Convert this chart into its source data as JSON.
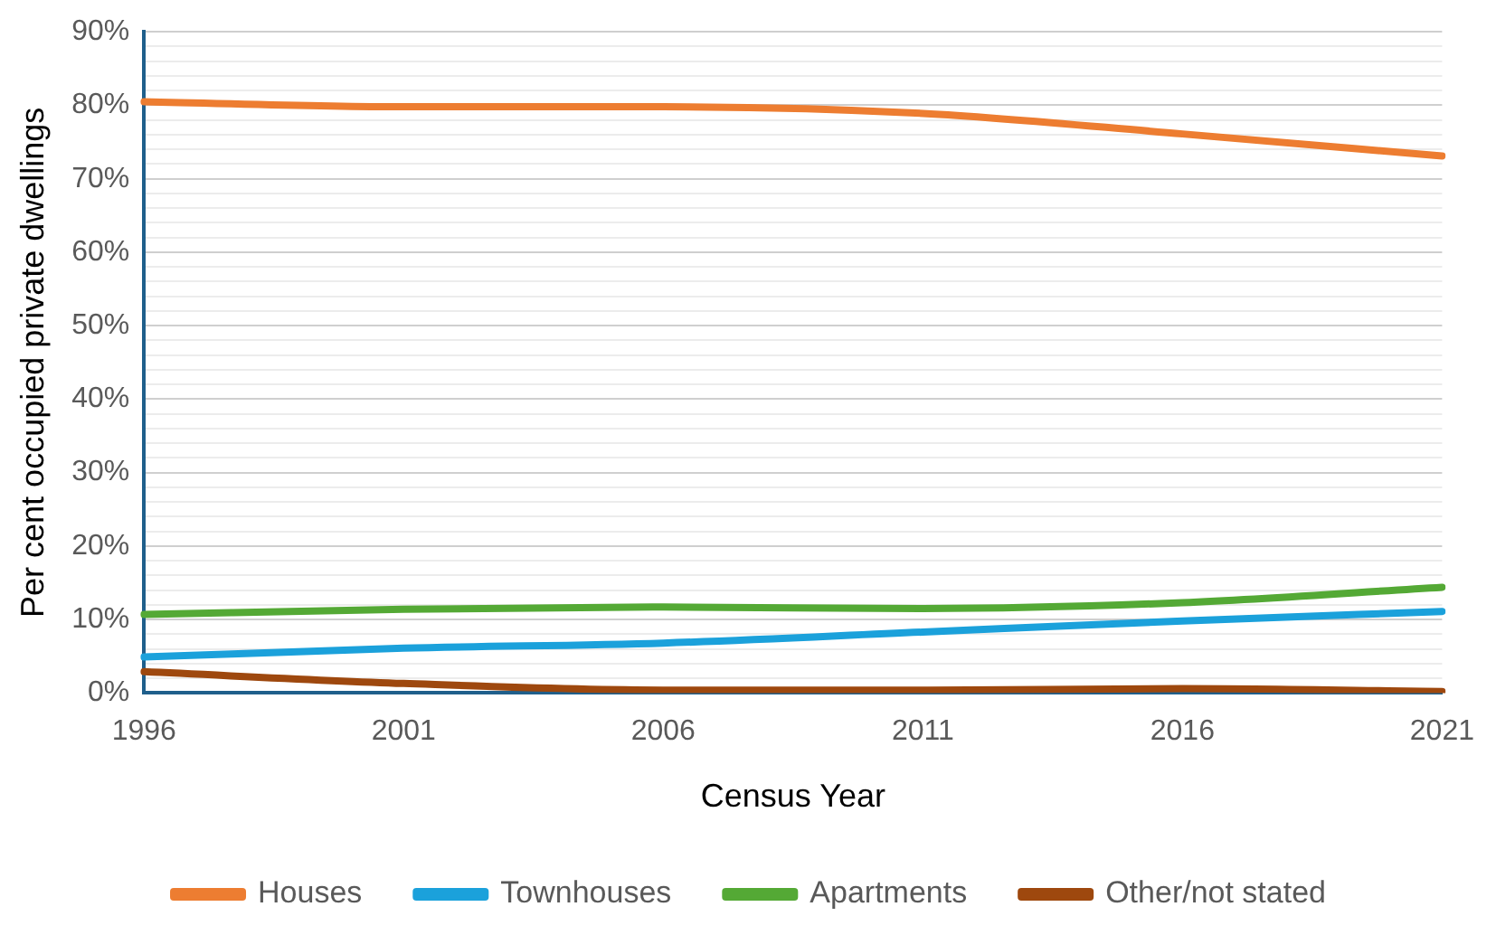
{
  "chart_data": {
    "type": "line",
    "xlabel": "Census Year",
    "ylabel": "Per cent occupied private dwellings",
    "categories": [
      "1996",
      "2001",
      "2006",
      "2011",
      "2016",
      "2021"
    ],
    "series": [
      {
        "name": "Houses",
        "color": "#ed7d31",
        "values": [
          80.5,
          79.8,
          79.8,
          78.9,
          76.1,
          73.1
        ]
      },
      {
        "name": "Townhouses",
        "color": "#1ba1db",
        "values": [
          4.9,
          6.1,
          6.8,
          8.3,
          9.8,
          11.1
        ]
      },
      {
        "name": "Apartments",
        "color": "#54a935",
        "values": [
          10.7,
          11.4,
          11.7,
          11.5,
          12.3,
          14.4
        ]
      },
      {
        "name": "Other/not stated",
        "color": "#9e480e",
        "values": [
          2.9,
          1.3,
          0.4,
          0.4,
          0.6,
          0.2
        ]
      }
    ],
    "ylim": [
      0,
      90
    ],
    "yticks": [
      {
        "value": 0,
        "label": "0%"
      },
      {
        "value": 2,
        "label": null
      },
      {
        "value": 4,
        "label": null
      },
      {
        "value": 6,
        "label": null
      },
      {
        "value": 8,
        "label": null
      },
      {
        "value": 10,
        "label": "10%"
      },
      {
        "value": 12,
        "label": null
      },
      {
        "value": 14,
        "label": null
      },
      {
        "value": 16,
        "label": null
      },
      {
        "value": 18,
        "label": null
      },
      {
        "value": 20,
        "label": "20%"
      },
      {
        "value": 22,
        "label": null
      },
      {
        "value": 24,
        "label": null
      },
      {
        "value": 26,
        "label": null
      },
      {
        "value": 28,
        "label": null
      },
      {
        "value": 30,
        "label": "30%"
      },
      {
        "value": 32,
        "label": null
      },
      {
        "value": 34,
        "label": null
      },
      {
        "value": 36,
        "label": null
      },
      {
        "value": 38,
        "label": null
      },
      {
        "value": 40,
        "label": "40%"
      },
      {
        "value": 42,
        "label": null
      },
      {
        "value": 44,
        "label": null
      },
      {
        "value": 46,
        "label": null
      },
      {
        "value": 48,
        "label": null
      },
      {
        "value": 50,
        "label": "50%"
      },
      {
        "value": 52,
        "label": null
      },
      {
        "value": 54,
        "label": null
      },
      {
        "value": 56,
        "label": null
      },
      {
        "value": 58,
        "label": null
      },
      {
        "value": 60,
        "label": "60%"
      },
      {
        "value": 62,
        "label": null
      },
      {
        "value": 64,
        "label": null
      },
      {
        "value": 66,
        "label": null
      },
      {
        "value": 68,
        "label": null
      },
      {
        "value": 70,
        "label": "70%"
      },
      {
        "value": 72,
        "label": null
      },
      {
        "value": 74,
        "label": null
      },
      {
        "value": 76,
        "label": null
      },
      {
        "value": 78,
        "label": null
      },
      {
        "value": 80,
        "label": "80%"
      },
      {
        "value": 82,
        "label": null
      },
      {
        "value": 84,
        "label": null
      },
      {
        "value": 86,
        "label": null
      },
      {
        "value": 88,
        "label": null
      },
      {
        "value": 90,
        "label": "90%"
      }
    ],
    "grid": "y",
    "legend": "bottom",
    "marker": "none",
    "line_style": "solid"
  }
}
